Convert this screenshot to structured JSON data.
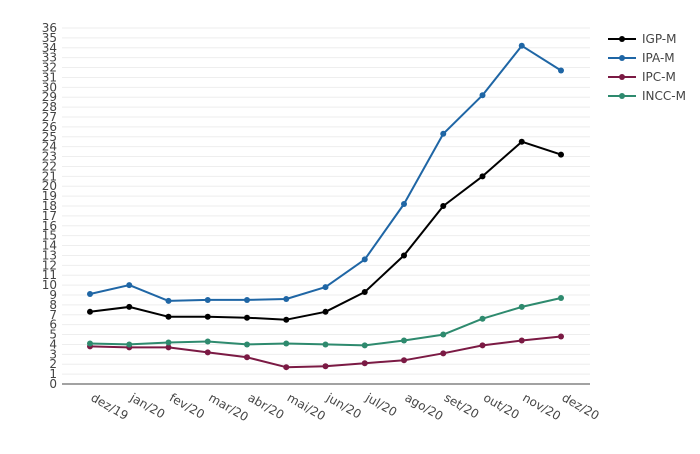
{
  "chart_data": {
    "type": "line",
    "categories": [
      "dez/19",
      "jan/20",
      "fev/20",
      "mar/20",
      "abr/20",
      "mai/20",
      "jun/20",
      "jul/20",
      "ago/20",
      "set/20",
      "out/20",
      "nov/20",
      "dez/20"
    ],
    "ylim": [
      0,
      36
    ],
    "yticks": [
      0,
      1,
      2,
      3,
      4,
      5,
      6,
      7,
      8,
      9,
      10,
      11,
      12,
      13,
      14,
      15,
      16,
      17,
      18,
      19,
      20,
      21,
      22,
      23,
      24,
      25,
      26,
      27,
      28,
      29,
      30,
      31,
      32,
      33,
      34,
      35,
      36
    ],
    "grid": true,
    "legend_position": "top-right",
    "series": [
      {
        "name": "IGP-M",
        "color": "#000000",
        "values": [
          7.3,
          7.8,
          6.8,
          6.8,
          6.7,
          6.5,
          7.3,
          9.3,
          13.0,
          18.0,
          21.0,
          24.5,
          23.2
        ]
      },
      {
        "name": "IPA-M",
        "color": "#1f66a5",
        "values": [
          9.1,
          10.0,
          8.4,
          8.5,
          8.5,
          8.6,
          9.8,
          12.6,
          18.2,
          25.3,
          29.2,
          34.2,
          31.7
        ]
      },
      {
        "name": "IPC-M",
        "color": "#7b1a44",
        "values": [
          3.8,
          3.7,
          3.7,
          3.2,
          2.7,
          1.7,
          1.8,
          2.1,
          2.4,
          3.1,
          3.9,
          4.4,
          4.8
        ]
      },
      {
        "name": "INCC-M",
        "color": "#2e8a6e",
        "values": [
          4.1,
          4.0,
          4.2,
          4.3,
          4.0,
          4.1,
          4.0,
          3.9,
          4.4,
          5.0,
          6.6,
          7.8,
          8.7
        ]
      }
    ]
  }
}
